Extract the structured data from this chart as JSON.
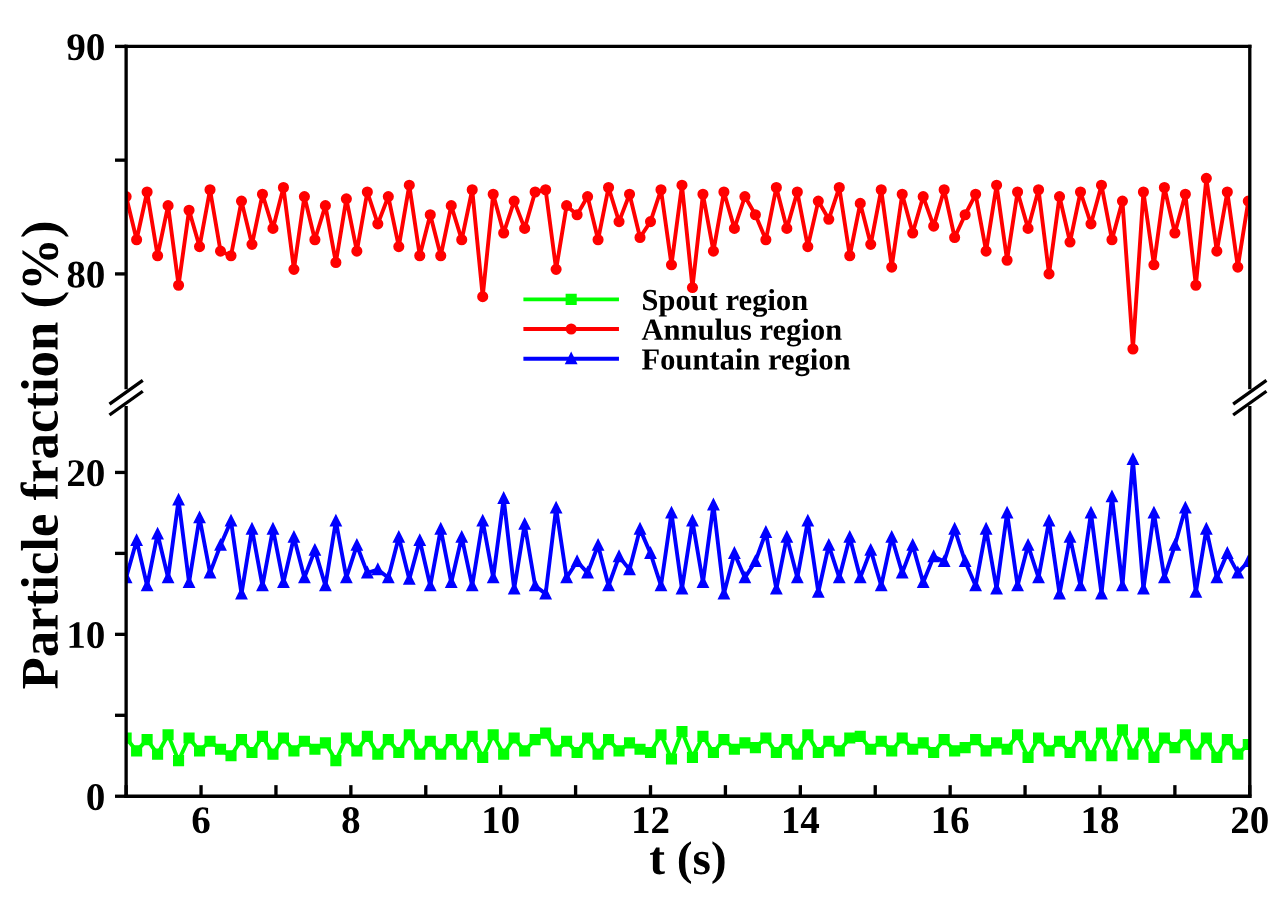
{
  "chart_data": [
    {
      "type": "line",
      "ylabel": "Particle fraction (%)",
      "xlim": [
        5,
        20
      ],
      "ylim": [
        75,
        90
      ],
      "yticks": [
        80,
        {
          "value": 85,
          "label": null
        },
        90
      ],
      "tick_labels": "y",
      "grid": false,
      "legend": "bottom",
      "line_style": "solid",
      "x": [
        5.0,
        5.14,
        5.28,
        5.42,
        5.56,
        5.7,
        5.84,
        5.98,
        6.12,
        6.26,
        6.4,
        6.54,
        6.68,
        6.82,
        6.96,
        7.1,
        7.24,
        7.38,
        7.52,
        7.66,
        7.8,
        7.94,
        8.08,
        8.22,
        8.36,
        8.5,
        8.64,
        8.78,
        8.92,
        9.06,
        9.2,
        9.34,
        9.48,
        9.62,
        9.76,
        9.9,
        10.04,
        10.18,
        10.32,
        10.46,
        10.6,
        10.74,
        10.88,
        11.02,
        11.16,
        11.3,
        11.44,
        11.58,
        11.72,
        11.86,
        12.0,
        12.14,
        12.28,
        12.42,
        12.56,
        12.7,
        12.84,
        12.98,
        13.12,
        13.26,
        13.4,
        13.54,
        13.68,
        13.82,
        13.96,
        14.1,
        14.24,
        14.38,
        14.52,
        14.66,
        14.8,
        14.94,
        15.08,
        15.22,
        15.36,
        15.5,
        15.64,
        15.78,
        15.92,
        16.06,
        16.2,
        16.34,
        16.48,
        16.62,
        16.76,
        16.9,
        17.04,
        17.18,
        17.32,
        17.46,
        17.6,
        17.74,
        17.88,
        18.02,
        18.16,
        18.3,
        18.44,
        18.58,
        18.72,
        18.86,
        19.0,
        19.14,
        19.28,
        19.42,
        19.56,
        19.7,
        19.84,
        19.98
      ],
      "series": [
        {
          "name": "Annulus region",
          "color": "#ff0000",
          "marker": "circle",
          "values": [
            83.4,
            81.5,
            83.6,
            80.8,
            83.0,
            79.5,
            82.8,
            81.2,
            83.7,
            81.0,
            80.8,
            83.2,
            81.3,
            83.5,
            82.0,
            83.8,
            80.2,
            83.4,
            81.5,
            83.0,
            80.5,
            83.3,
            81.0,
            83.6,
            82.2,
            83.4,
            81.2,
            83.9,
            80.8,
            82.6,
            80.8,
            83.0,
            81.5,
            83.7,
            79.0,
            83.5,
            81.8,
            83.2,
            82.0,
            83.6,
            83.7,
            80.2,
            83.0,
            82.6,
            83.4,
            81.5,
            83.8,
            82.3,
            83.5,
            81.6,
            82.3,
            83.7,
            80.4,
            83.9,
            79.4,
            83.5,
            81.0,
            83.6,
            82.0,
            83.4,
            82.6,
            81.5,
            83.8,
            82.0,
            83.6,
            81.2,
            83.2,
            82.4,
            83.8,
            80.8,
            83.1,
            81.3,
            83.7,
            80.3,
            83.5,
            81.8,
            83.4,
            82.1,
            83.7,
            81.6,
            82.6,
            83.5,
            81.0,
            83.9,
            80.6,
            83.6,
            82.0,
            83.7,
            80.0,
            83.4,
            81.4,
            83.6,
            82.2,
            83.9,
            81.5,
            83.2,
            76.7,
            83.6,
            80.4,
            83.8,
            81.8,
            83.5,
            79.5,
            84.2,
            81.0,
            83.6,
            80.3,
            83.2
          ]
        }
      ]
    },
    {
      "type": "line",
      "xlabel": "t (s)",
      "xlim": [
        5,
        20
      ],
      "ylim": [
        0,
        24
      ],
      "xticks": [
        {
          "value": 5,
          "label": null
        },
        6,
        {
          "value": 7,
          "label": null
        },
        8,
        {
          "value": 9,
          "label": null
        },
        10,
        {
          "value": 11,
          "label": null
        },
        12,
        {
          "value": 13,
          "label": null
        },
        14,
        {
          "value": 15,
          "label": null
        },
        16,
        {
          "value": 17,
          "label": null
        },
        18,
        {
          "value": 19,
          "label": null
        },
        20
      ],
      "yticks": [
        0,
        {
          "value": 5,
          "label": null
        },
        10,
        {
          "value": 15,
          "label": null
        },
        20
      ],
      "grid": false,
      "legend": "top",
      "line_style": "solid",
      "x": [
        5.0,
        5.14,
        5.28,
        5.42,
        5.56,
        5.7,
        5.84,
        5.98,
        6.12,
        6.26,
        6.4,
        6.54,
        6.68,
        6.82,
        6.96,
        7.1,
        7.24,
        7.38,
        7.52,
        7.66,
        7.8,
        7.94,
        8.08,
        8.22,
        8.36,
        8.5,
        8.64,
        8.78,
        8.92,
        9.06,
        9.2,
        9.34,
        9.48,
        9.62,
        9.76,
        9.9,
        10.04,
        10.18,
        10.32,
        10.46,
        10.6,
        10.74,
        10.88,
        11.02,
        11.16,
        11.3,
        11.44,
        11.58,
        11.72,
        11.86,
        12.0,
        12.14,
        12.28,
        12.42,
        12.56,
        12.7,
        12.84,
        12.98,
        13.12,
        13.26,
        13.4,
        13.54,
        13.68,
        13.82,
        13.96,
        14.1,
        14.24,
        14.38,
        14.52,
        14.66,
        14.8,
        14.94,
        15.08,
        15.22,
        15.36,
        15.5,
        15.64,
        15.78,
        15.92,
        16.06,
        16.2,
        16.34,
        16.48,
        16.62,
        16.76,
        16.9,
        17.04,
        17.18,
        17.32,
        17.46,
        17.6,
        17.74,
        17.88,
        18.02,
        18.16,
        18.3,
        18.44,
        18.58,
        18.72,
        18.86,
        19.0,
        19.14,
        19.28,
        19.42,
        19.56,
        19.7,
        19.84,
        19.98
      ],
      "series": [
        {
          "name": "Spout region",
          "color": "#00ff00",
          "marker": "square",
          "values": [
            3.6,
            2.8,
            3.5,
            2.6,
            3.8,
            2.2,
            3.6,
            2.8,
            3.4,
            2.9,
            2.5,
            3.5,
            2.7,
            3.7,
            2.6,
            3.6,
            2.8,
            3.4,
            2.9,
            3.3,
            2.2,
            3.6,
            2.8,
            3.7,
            2.6,
            3.5,
            2.7,
            3.8,
            2.6,
            3.4,
            2.6,
            3.5,
            2.6,
            3.7,
            2.4,
            3.8,
            2.6,
            3.6,
            2.8,
            3.5,
            3.9,
            2.8,
            3.4,
            2.7,
            3.6,
            2.6,
            3.5,
            2.8,
            3.3,
            2.9,
            2.7,
            3.8,
            2.3,
            4.0,
            2.4,
            3.7,
            2.7,
            3.5,
            2.9,
            3.3,
            3.0,
            3.6,
            2.7,
            3.5,
            2.6,
            3.8,
            2.7,
            3.4,
            2.8,
            3.6,
            3.7,
            2.9,
            3.4,
            2.8,
            3.6,
            2.9,
            3.3,
            2.7,
            3.5,
            2.8,
            3.0,
            3.5,
            2.8,
            3.3,
            2.9,
            3.8,
            2.4,
            3.6,
            2.8,
            3.4,
            2.7,
            3.7,
            2.5,
            3.9,
            2.5,
            4.1,
            2.6,
            3.9,
            2.4,
            3.6,
            3.0,
            3.8,
            2.6,
            3.6,
            2.4,
            3.5,
            2.6,
            3.2
          ]
        },
        {
          "name": "Fountain region",
          "color": "#0000ff",
          "marker": "triangle",
          "values": [
            13.5,
            15.8,
            13.0,
            16.2,
            13.5,
            18.3,
            13.2,
            17.2,
            13.8,
            15.5,
            17.0,
            12.5,
            16.5,
            13.0,
            16.5,
            13.2,
            16.0,
            13.5,
            15.2,
            13.0,
            17.0,
            13.5,
            15.5,
            13.8,
            14.0,
            13.5,
            16.0,
            13.4,
            15.8,
            13.0,
            16.5,
            13.2,
            16.0,
            13.0,
            17.0,
            13.5,
            18.4,
            12.8,
            16.8,
            13.0,
            12.5,
            17.8,
            13.5,
            14.5,
            13.8,
            15.5,
            13.0,
            14.8,
            14.0,
            16.5,
            15.0,
            13.0,
            17.5,
            12.8,
            17.0,
            13.2,
            18.0,
            12.5,
            15.0,
            13.5,
            14.5,
            16.3,
            12.8,
            16.0,
            13.5,
            17.0,
            12.6,
            15.5,
            13.5,
            16.0,
            13.5,
            15.2,
            13.0,
            16.0,
            13.8,
            15.5,
            13.2,
            14.8,
            14.5,
            16.5,
            14.5,
            13.0,
            16.5,
            12.8,
            17.5,
            13.0,
            15.5,
            13.5,
            17.0,
            12.5,
            16.0,
            13.0,
            17.5,
            12.5,
            18.5,
            13.0,
            20.8,
            12.8,
            17.5,
            13.5,
            15.5,
            17.8,
            12.6,
            16.5,
            13.5,
            15.0,
            13.8,
            14.5
          ]
        }
      ]
    }
  ]
}
